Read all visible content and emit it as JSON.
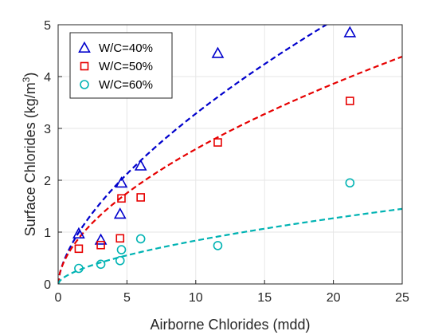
{
  "chart_data": {
    "type": "scatter",
    "xlabel": "Airborne Chlorides (mdd)",
    "ylabel": "Surface Chlorides (kg/m",
    "ylabel_superscript": "3",
    "ylabel_close": ")",
    "xlim": [
      0,
      25
    ],
    "ylim": [
      0,
      5
    ],
    "xticks": [
      0,
      5,
      10,
      15,
      20,
      25
    ],
    "yticks": [
      0,
      1,
      2,
      3,
      4,
      5
    ],
    "grid": true,
    "legend_position": "top-left",
    "series": [
      {
        "name": "W/C=40%",
        "marker": "triangle",
        "color": "#0000cc",
        "points": [
          [
            1.5,
            0.97
          ],
          [
            3.1,
            0.85
          ],
          [
            4.5,
            1.35
          ],
          [
            4.6,
            1.95
          ],
          [
            6.0,
            2.28
          ],
          [
            11.6,
            4.45
          ],
          [
            21.2,
            4.85
          ]
        ],
        "fit": {
          "a": 0.77,
          "b": 0.63
        }
      },
      {
        "name": "W/C=50%",
        "marker": "square",
        "color": "#e60000",
        "points": [
          [
            1.5,
            0.68
          ],
          [
            3.1,
            0.75
          ],
          [
            4.5,
            0.88
          ],
          [
            4.6,
            1.65
          ],
          [
            6.0,
            1.67
          ],
          [
            11.6,
            2.73
          ],
          [
            21.2,
            3.53
          ]
        ],
        "fit": {
          "a": 0.7,
          "b": 0.57
        }
      },
      {
        "name": "W/C=60%",
        "marker": "circle",
        "color": "#00b3b3",
        "points": [
          [
            1.5,
            0.3
          ],
          [
            3.1,
            0.38
          ],
          [
            4.5,
            0.45
          ],
          [
            4.6,
            0.66
          ],
          [
            6.0,
            0.87
          ],
          [
            11.6,
            0.74
          ],
          [
            21.2,
            1.95
          ]
        ],
        "fit": {
          "a": 0.21,
          "b": 0.6
        }
      }
    ]
  }
}
